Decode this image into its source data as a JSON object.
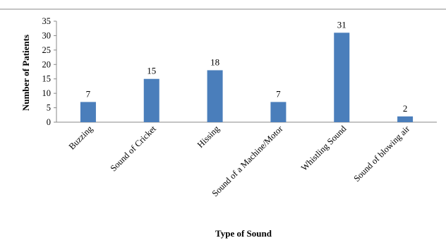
{
  "chart_data": {
    "type": "bar",
    "title": "",
    "xlabel": "Type of Sound",
    "ylabel": "Number of Patients",
    "categories": [
      "Buzzing",
      "Sound of Cricket",
      "Hissing",
      "Sound of a Machine/Motor",
      "Whistling Sound",
      "Sound of blowing air"
    ],
    "values": [
      7,
      15,
      18,
      7,
      31,
      2
    ],
    "data_labels": [
      "7",
      "15",
      "18",
      "7",
      "31",
      "2"
    ],
    "ylim": [
      0,
      35
    ],
    "yticks": [
      0,
      5,
      10,
      15,
      20,
      25,
      30,
      35
    ],
    "grid": false,
    "legend": "none",
    "bar_color": "#4a7ebb",
    "axis_color": "#888888"
  }
}
